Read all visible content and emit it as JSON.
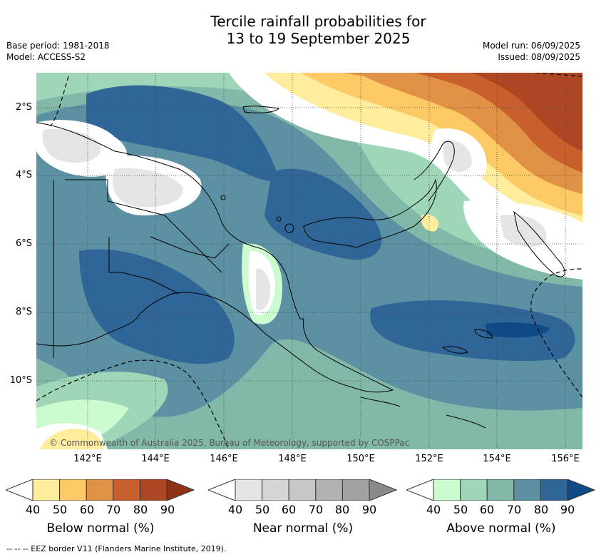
{
  "title_line1": "Tercile rainfall probabilities for",
  "title_line2": "13 to 19 September 2025",
  "base_period": "Base period: 1981-2018",
  "model": "Model: ACCESS-S2",
  "model_run": "Model run: 06/09/2025",
  "issued": "Issued: 08/09/2025",
  "lat_labels": [
    "2°S",
    "4°S",
    "6°S",
    "8°S",
    "10°S"
  ],
  "lon_labels": [
    "142°E",
    "144°E",
    "146°E",
    "148°E",
    "150°E",
    "152°E",
    "154°E",
    "156°E"
  ],
  "copyright": "© Commonwealth of Australia 2025, Bureau of Meteorology, supported by COSPPac",
  "colorbars": [
    {
      "label": "Below normal (%)",
      "ticks": [
        "40",
        "50",
        "60",
        "70",
        "80",
        "90"
      ],
      "colors": [
        "#ffffff",
        "#ffec9d",
        "#fdc964",
        "#e09145",
        "#c95f2d",
        "#ad4723",
        "#8e3215"
      ]
    },
    {
      "label": "Near normal (%)",
      "ticks": [
        "40",
        "50",
        "60",
        "70",
        "80",
        "90"
      ],
      "colors": [
        "#ffffff",
        "#e5e5e5",
        "#d5d5d5",
        "#c7c7c7",
        "#b2b2b2",
        "#a1a1a1",
        "#8a8a8a"
      ]
    },
    {
      "label": "Above normal (%)",
      "ticks": [
        "40",
        "50",
        "60",
        "70",
        "80",
        "90"
      ],
      "colors": [
        "#ffffff",
        "#cbfbce",
        "#a0d6b8",
        "#82b8a9",
        "#5b91a2",
        "#2f6697",
        "#0d4a86"
      ]
    }
  ],
  "footnote": "--  --  -- EEZ border V11 (Flanders Marine Institute, 2019)."
}
